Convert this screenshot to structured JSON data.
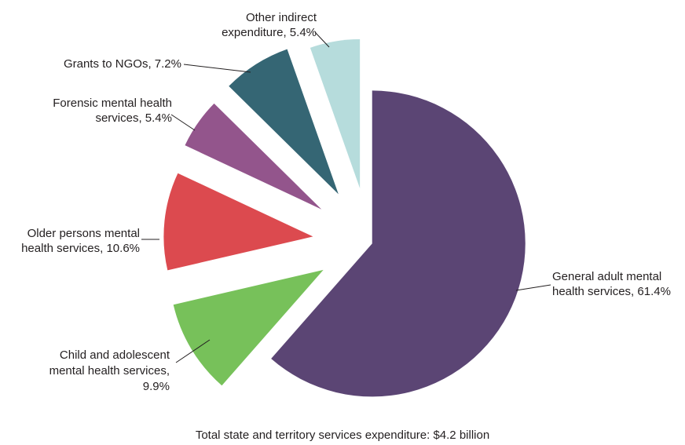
{
  "chart_data": {
    "type": "pie",
    "exploded": true,
    "categories": [
      "General adult mental health services",
      "Child and adolescent mental health services",
      "Older persons mental health services",
      "Forensic mental health services",
      "Grants to NGOs",
      "Other indirect expenditure"
    ],
    "values": [
      61.4,
      9.9,
      10.6,
      5.4,
      7.2,
      5.4
    ],
    "unit": "%",
    "colors": [
      "#5b4574",
      "#77c15a",
      "#dc4a4f",
      "#93558c",
      "#356674",
      "#b6dcdc"
    ],
    "labels": [
      [
        "General adult mental",
        "health services, 61.4%"
      ],
      [
        "Child and adolescent",
        "mental health services,",
        "9.9%"
      ],
      [
        "Older persons mental",
        "health services, 10.6%"
      ],
      [
        "Forensic mental health",
        "services, 5.4%"
      ],
      [
        "Grants to NGOs, 7.2%"
      ],
      [
        "Other indirect",
        "expenditure, 5.4%"
      ]
    ],
    "caption": "Total state and territory services expenditure: $4.2 billion"
  }
}
